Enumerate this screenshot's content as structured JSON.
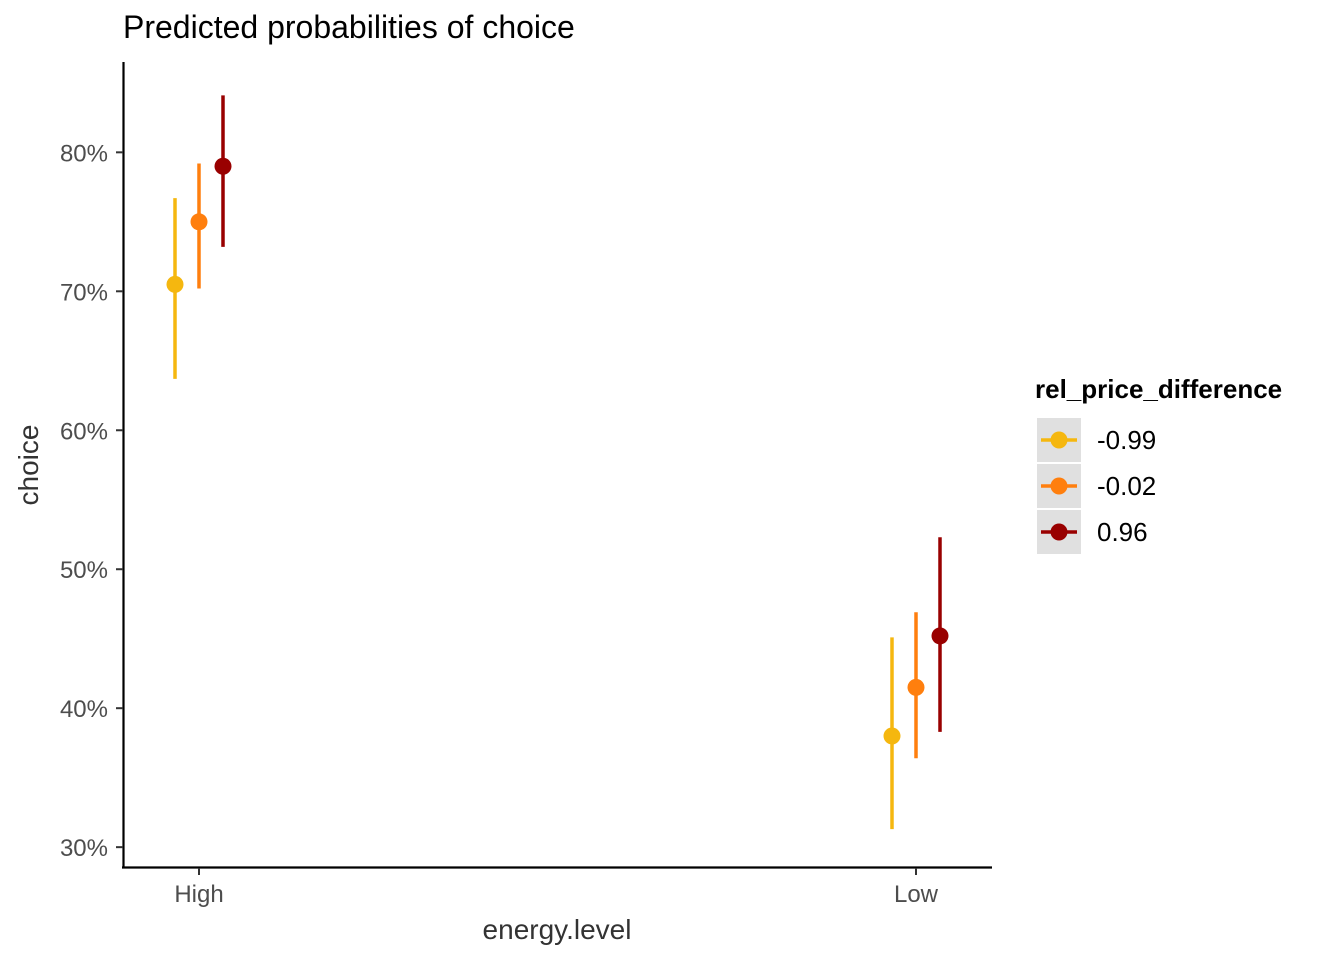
{
  "chart_data": {
    "type": "scatter",
    "subtype": "pointrange",
    "title": "Predicted probabilities of choice",
    "xlabel": "energy.level",
    "ylabel": "choice",
    "categories": [
      "High",
      "Low"
    ],
    "ylim": [
      0.285,
      0.865
    ],
    "yticks": [
      0.3,
      0.4,
      0.5,
      0.6,
      0.7,
      0.8
    ],
    "ytick_labels": [
      "30%",
      "40%",
      "50%",
      "60%",
      "70%",
      "80%"
    ],
    "grid": false,
    "legend": {
      "title": "rel_price_difference",
      "position": "right"
    },
    "series": [
      {
        "name": "-0.99",
        "color": "#F5B70F",
        "values": [
          0.705,
          0.38
        ],
        "lower": [
          0.637,
          0.313
        ],
        "upper": [
          0.767,
          0.451
        ]
      },
      {
        "name": "-0.02",
        "color": "#FF7F0E",
        "values": [
          0.75,
          0.415
        ],
        "lower": [
          0.702,
          0.364
        ],
        "upper": [
          0.792,
          0.469
        ]
      },
      {
        "name": "0.96",
        "color": "#990000",
        "values": [
          0.79,
          0.452
        ],
        "lower": [
          0.732,
          0.383
        ],
        "upper": [
          0.841,
          0.523
        ]
      }
    ]
  }
}
